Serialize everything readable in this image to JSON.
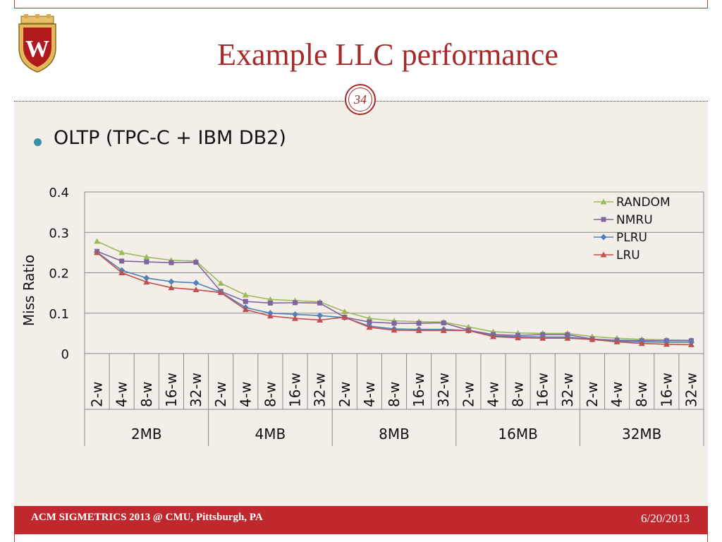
{
  "slide": {
    "title": "Example LLC performance",
    "number": "34",
    "bullet": "OLTP (TPC-C + IBM DB2)"
  },
  "logo": {
    "letter": "W",
    "icon": "university-crest-icon"
  },
  "footer": {
    "left": "ACM SIGMETRICS 2013 @ CMU, Pittsburgh, PA",
    "right": "6/20/2013"
  },
  "colors": {
    "accent": "#a52a2a",
    "footer": "#c0282d",
    "content_bg": "#f3efe8"
  },
  "chart_data": {
    "type": "line",
    "ylabel": "Miss Ratio",
    "ylim": [
      0,
      0.4
    ],
    "yticks": [
      "0",
      "0.1",
      "0.2",
      "0.3",
      "0.4"
    ],
    "grid": true,
    "legend_position": "top-right",
    "groups": [
      "2MB",
      "4MB",
      "8MB",
      "16MB",
      "32MB"
    ],
    "ways": [
      "2-w",
      "4-w",
      "8-w",
      "16-w",
      "32-w"
    ],
    "series": [
      {
        "name": "RANDOM",
        "color": "#9bbb59",
        "marker": "triangle",
        "values": [
          0.278,
          0.25,
          0.239,
          0.231,
          0.229,
          0.174,
          0.145,
          0.134,
          0.131,
          0.128,
          0.104,
          0.087,
          0.081,
          0.079,
          0.078,
          0.066,
          0.054,
          0.051,
          0.05,
          0.05,
          0.042,
          0.038,
          0.035,
          0.034,
          0.033
        ]
      },
      {
        "name": "NMRU",
        "color": "#8064a2",
        "marker": "square",
        "values": [
          0.253,
          0.229,
          0.227,
          0.225,
          0.226,
          0.154,
          0.129,
          0.125,
          0.126,
          0.125,
          0.09,
          0.078,
          0.075,
          0.075,
          0.076,
          0.058,
          0.047,
          0.045,
          0.047,
          0.047,
          0.036,
          0.033,
          0.032,
          0.032,
          0.032
        ]
      },
      {
        "name": "PLRU",
        "color": "#4f81bd",
        "marker": "diamond",
        "values": [
          0.251,
          0.206,
          0.187,
          0.178,
          0.175,
          0.152,
          0.114,
          0.1,
          0.097,
          0.094,
          0.089,
          0.068,
          0.061,
          0.06,
          0.06,
          0.057,
          0.044,
          0.042,
          0.041,
          0.041,
          0.035,
          0.031,
          0.029,
          0.028,
          0.028
        ]
      },
      {
        "name": "LRU",
        "color": "#c0504d",
        "marker": "triangle",
        "values": [
          0.25,
          0.2,
          0.177,
          0.163,
          0.158,
          0.151,
          0.109,
          0.093,
          0.087,
          0.083,
          0.09,
          0.065,
          0.058,
          0.057,
          0.057,
          0.057,
          0.042,
          0.039,
          0.038,
          0.038,
          0.035,
          0.029,
          0.025,
          0.023,
          0.022
        ]
      }
    ]
  }
}
